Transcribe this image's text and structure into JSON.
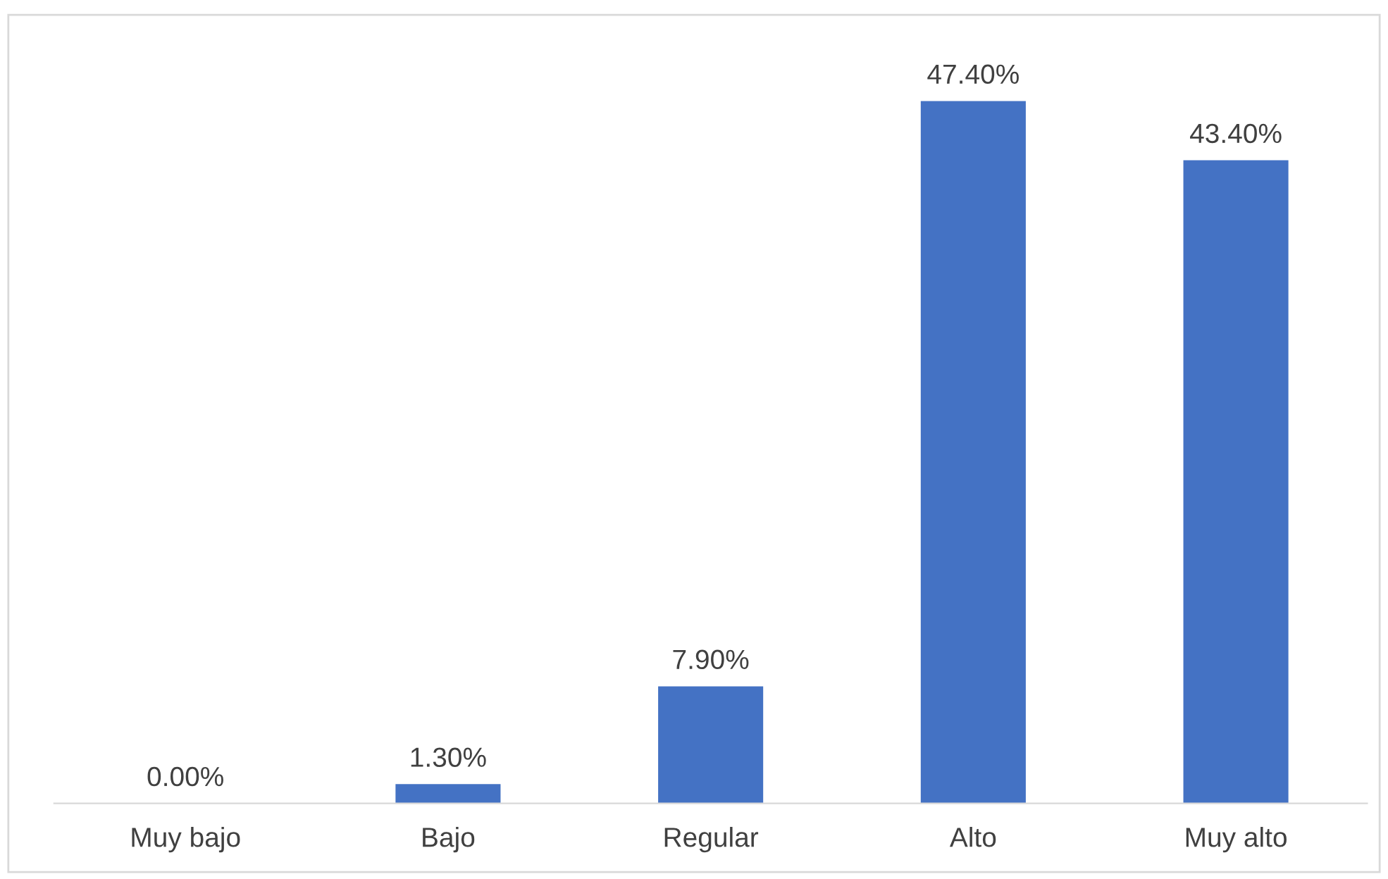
{
  "chart_data": {
    "type": "bar",
    "categories": [
      "Muy bajo",
      "Bajo",
      "Regular",
      "Alto",
      "Muy alto"
    ],
    "values": [
      0.0,
      1.3,
      7.9,
      47.4,
      43.4
    ],
    "value_labels": [
      "0.00%",
      "1.30%",
      "7.90%",
      "47.40%",
      "43.40%"
    ],
    "color": "#4472c4",
    "grid": false,
    "legend": false
  }
}
